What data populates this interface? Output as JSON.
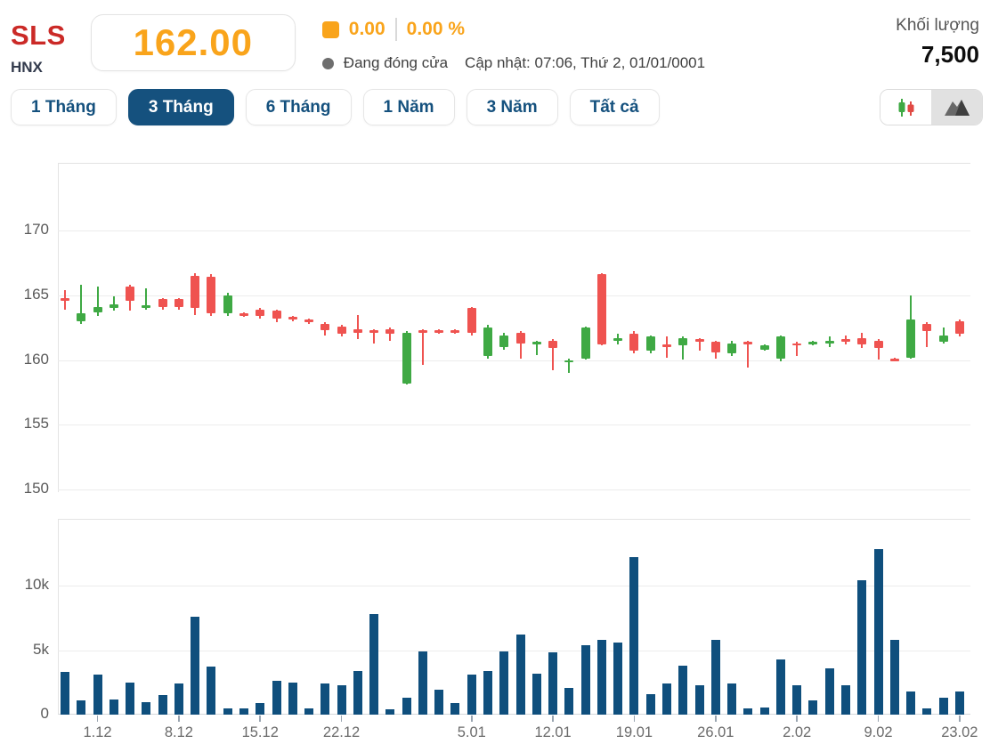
{
  "header": {
    "symbol": "SLS",
    "exchange": "HNX",
    "price": "162.00",
    "change": "0.00",
    "change_percent": "0.00 %",
    "market_status": "Đang đóng cửa",
    "updated": "Cập nhật: 07:06, Thứ 2, 01/01/0001",
    "volume_label": "Khối lượng",
    "volume_value": "7,500"
  },
  "icons": {
    "change_marker": "orange-square-icon",
    "status_marker": "status-dot-icon",
    "candlestick_toggle": "candlestick-chart-icon",
    "area_toggle": "area-chart-icon"
  },
  "tabs": [
    {
      "label": "1 Tháng",
      "active": false
    },
    {
      "label": "3 Tháng",
      "active": true
    },
    {
      "label": "6 Tháng",
      "active": false
    },
    {
      "label": "1 Năm",
      "active": false
    },
    {
      "label": "3 Năm",
      "active": false
    },
    {
      "label": "Tất cả",
      "active": false
    }
  ],
  "colors": {
    "symbol_red": "#cb2a27",
    "price_orange": "#f9a41b",
    "navy": "#15517e",
    "candle_up": "#3fa944",
    "candle_down": "#ef5350",
    "volume_bar": "#0f4f7d"
  },
  "chart_data": [
    {
      "type": "candlestick",
      "title": "SLS 3-month price history",
      "yticks": [
        170,
        165,
        160,
        155,
        150
      ],
      "ylim": [
        148.5,
        172.5
      ],
      "grid": true,
      "up_color": "#3fa944",
      "down_color": "#ef5350",
      "x_tick_labels": [
        "1.12",
        "8.12",
        "15.12",
        "22.12",
        "5.01",
        "12.01",
        "19.01",
        "26.01",
        "2.02",
        "9.02",
        "23.02"
      ],
      "x_tick_indices": [
        2,
        7,
        12,
        17,
        25,
        30,
        35,
        40,
        45,
        50,
        55
      ],
      "candles_ohlc": [
        [
          164.8,
          165.4,
          163.9,
          164.6
        ],
        [
          163.0,
          165.8,
          162.8,
          163.6
        ],
        [
          163.7,
          165.7,
          163.4,
          164.1
        ],
        [
          164.0,
          164.9,
          163.8,
          164.3
        ],
        [
          165.7,
          165.8,
          163.8,
          164.6
        ],
        [
          164.0,
          165.5,
          163.9,
          164.2
        ],
        [
          164.7,
          164.8,
          163.9,
          164.1
        ],
        [
          164.7,
          164.8,
          163.9,
          164.1
        ],
        [
          166.5,
          166.7,
          163.5,
          164.0
        ],
        [
          166.4,
          166.6,
          163.4,
          163.6
        ],
        [
          163.6,
          165.2,
          163.4,
          165.0
        ],
        [
          163.6,
          163.7,
          163.3,
          163.5
        ],
        [
          163.9,
          164.0,
          163.2,
          163.4
        ],
        [
          163.8,
          163.9,
          162.9,
          163.2
        ],
        [
          163.3,
          163.4,
          163.0,
          163.1
        ],
        [
          163.1,
          163.2,
          162.8,
          162.9
        ],
        [
          162.8,
          162.9,
          161.9,
          162.3
        ],
        [
          162.6,
          162.7,
          161.8,
          162.0
        ],
        [
          162.4,
          163.5,
          161.6,
          162.1
        ],
        [
          162.3,
          162.4,
          161.3,
          162.1
        ],
        [
          162.4,
          162.5,
          161.5,
          162.0
        ],
        [
          158.2,
          162.2,
          158.1,
          162.1
        ],
        [
          162.3,
          162.4,
          159.6,
          162.1
        ],
        [
          162.3,
          162.4,
          162.0,
          162.1
        ],
        [
          162.3,
          162.4,
          162.0,
          162.1
        ],
        [
          164.0,
          164.1,
          161.9,
          162.1
        ],
        [
          160.3,
          162.7,
          160.1,
          162.5
        ],
        [
          161.0,
          162.1,
          160.8,
          161.9
        ],
        [
          162.1,
          162.2,
          160.1,
          161.3
        ],
        [
          161.2,
          161.5,
          160.4,
          161.4
        ],
        [
          161.5,
          161.6,
          159.2,
          160.9
        ],
        [
          159.8,
          160.1,
          159.0,
          160.0
        ],
        [
          160.1,
          162.6,
          160.0,
          162.5
        ],
        [
          166.6,
          166.7,
          161.1,
          161.2
        ],
        [
          161.5,
          162.0,
          161.2,
          161.7
        ],
        [
          162.0,
          162.2,
          160.5,
          160.7
        ],
        [
          160.7,
          161.9,
          160.5,
          161.8
        ],
        [
          161.2,
          161.8,
          160.2,
          161.0
        ],
        [
          161.1,
          161.8,
          160.0,
          161.7
        ],
        [
          161.6,
          161.7,
          160.7,
          161.4
        ],
        [
          161.4,
          161.5,
          160.1,
          160.6
        ],
        [
          160.5,
          161.5,
          160.3,
          161.3
        ],
        [
          161.4,
          161.5,
          159.4,
          161.2
        ],
        [
          160.8,
          161.2,
          160.7,
          161.1
        ],
        [
          160.1,
          161.9,
          159.9,
          161.8
        ],
        [
          161.3,
          161.4,
          160.3,
          161.1
        ],
        [
          161.2,
          161.5,
          161.1,
          161.4
        ],
        [
          161.3,
          161.8,
          161.0,
          161.5
        ],
        [
          161.6,
          161.9,
          161.2,
          161.4
        ],
        [
          161.7,
          162.1,
          160.9,
          161.2
        ],
        [
          161.5,
          161.6,
          160.0,
          160.9
        ],
        [
          160.1,
          160.2,
          159.9,
          159.9
        ],
        [
          160.2,
          165.0,
          160.1,
          163.1
        ],
        [
          162.8,
          162.9,
          161.0,
          162.2
        ],
        [
          161.4,
          162.5,
          161.3,
          161.9
        ],
        [
          163.0,
          163.1,
          161.8,
          162.0
        ]
      ]
    },
    {
      "type": "bar",
      "title": "Daily traded volume",
      "ytick_labels": [
        "0",
        "5k",
        "10k"
      ],
      "ytick_values": [
        0,
        5000,
        10000
      ],
      "ylim": [
        0,
        15000
      ],
      "grid": true,
      "bar_color": "#0f4f7d",
      "values": [
        3300,
        1100,
        3100,
        1200,
        2500,
        1000,
        1500,
        2400,
        7600,
        3700,
        500,
        500,
        900,
        2600,
        2500,
        450,
        2400,
        2300,
        3400,
        7800,
        400,
        1300,
        4900,
        1900,
        900,
        3100,
        3400,
        4900,
        6200,
        3200,
        4800,
        2100,
        5400,
        5800,
        5600,
        12200,
        1600,
        2400,
        3800,
        2300,
        5800,
        2400,
        450,
        550,
        4300,
        2300,
        1100,
        3600,
        2300,
        10400,
        12800,
        5800,
        1800,
        500,
        1300,
        1800
      ]
    }
  ]
}
